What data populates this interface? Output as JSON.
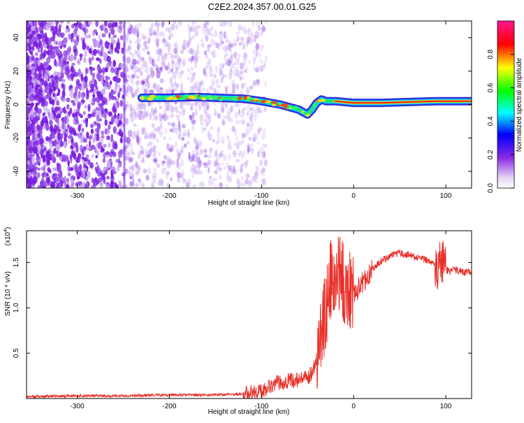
{
  "title": "C2E2.2024.357.00.01.G25",
  "chart_data": [
    {
      "type": "heatmap",
      "xlabel": "Height of straight line (km)",
      "ylabel": "Frequency (Hz)",
      "xlim": [
        -355,
        128
      ],
      "ylim": [
        -50,
        50
      ],
      "xticks": [
        -300,
        -200,
        -100,
        0,
        100
      ],
      "yticks": [
        -40,
        -20,
        0,
        20,
        40
      ],
      "colorbar": {
        "label": "Normalized spectral amplitude",
        "ticks": [
          0.0,
          0.2,
          0.4,
          0.6,
          0.8
        ],
        "tick_labels": [
          "0.0",
          "0.2",
          "0.4",
          "0.6",
          "0.8"
        ],
        "range": [
          0,
          1
        ],
        "colors": [
          "#ffffff",
          "#e6d8f6",
          "#8a2be2",
          "#0000ff",
          "#00ffff",
          "#00ff00",
          "#ffff00",
          "#ff0000",
          "#ff1493"
        ]
      },
      "ridge": {
        "x": [
          -230,
          -200,
          -170,
          -150,
          -120,
          -100,
          -80,
          -60,
          -50,
          -45,
          -40,
          -35,
          -30,
          -20,
          0,
          30,
          60,
          90,
          128
        ],
        "y": [
          4,
          4,
          4.5,
          4,
          3.5,
          2,
          0,
          -3,
          -6,
          -3,
          1,
          3,
          2,
          2,
          1,
          1,
          1.5,
          2,
          2
        ]
      }
    },
    {
      "type": "line",
      "xlabel": "Height of straight line (km)",
      "ylabel": "SNR (10 * v/v)",
      "multiplier_label": "(x10",
      "multiplier_exp": "4",
      "xlim": [
        -355,
        128
      ],
      "ylim": [
        0,
        1.85
      ],
      "xticks": [
        -300,
        -200,
        -100,
        0,
        100
      ],
      "yticks": [
        0.5,
        1.0,
        1.5
      ],
      "ytick_labels": [
        "0.5",
        "1.0",
        "1.5"
      ],
      "color": "#e8302a",
      "series": [
        {
          "x": [
            -355,
            -300,
            -250,
            -200,
            -150,
            -120,
            -100,
            -90,
            -80,
            -70,
            -60,
            -50,
            -45,
            -40,
            -35,
            -30,
            -25,
            -20,
            -15,
            -10,
            -5,
            0,
            10,
            20,
            30,
            40,
            50,
            60,
            70,
            80,
            90,
            95,
            100,
            105,
            110,
            120,
            128
          ],
          "y": [
            0.02,
            0.03,
            0.03,
            0.04,
            0.04,
            0.05,
            0.08,
            0.15,
            0.18,
            0.2,
            0.2,
            0.22,
            0.3,
            0.45,
            0.7,
            1.0,
            1.3,
            1.2,
            1.45,
            1.2,
            1.25,
            1.15,
            1.28,
            1.42,
            1.52,
            1.57,
            1.6,
            1.58,
            1.55,
            1.52,
            1.5,
            1.45,
            1.42,
            1.4,
            1.42,
            1.39,
            1.4
          ]
        }
      ]
    }
  ]
}
